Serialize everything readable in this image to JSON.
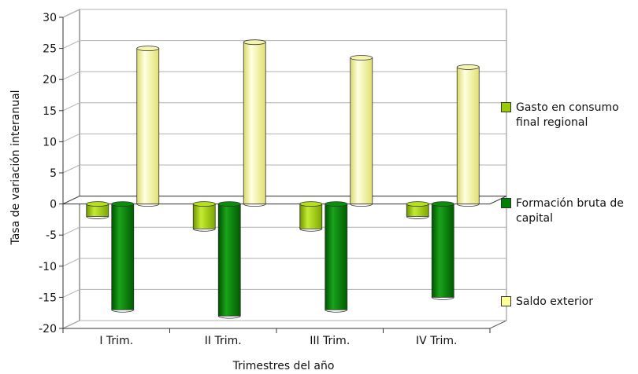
{
  "chart_data": {
    "type": "bar",
    "title": "",
    "xlabel": "Trimestres del año",
    "ylabel": "Tasa de variación interanual",
    "ylim": [
      -20,
      30
    ],
    "yticks": [
      30,
      25,
      20,
      15,
      10,
      5,
      0,
      -5,
      -10,
      -15,
      -20
    ],
    "categories": [
      "I Trim.",
      "II Trim.",
      "III Trim.",
      "IV Trim."
    ],
    "series": [
      {
        "name": "Gasto en consumo final regional",
        "values": [
          -2,
          -4,
          -4,
          -2
        ],
        "color": "#99cc00"
      },
      {
        "name": "Formación bruta de capital",
        "values": [
          -17,
          -18,
          -17,
          -15
        ],
        "color": "#008000"
      },
      {
        "name": "Saldo exterior",
        "values": [
          25,
          26,
          23.5,
          22
        ],
        "color": "#ffff99"
      }
    ],
    "grid": true,
    "legend": "right",
    "style": "3d-column"
  }
}
